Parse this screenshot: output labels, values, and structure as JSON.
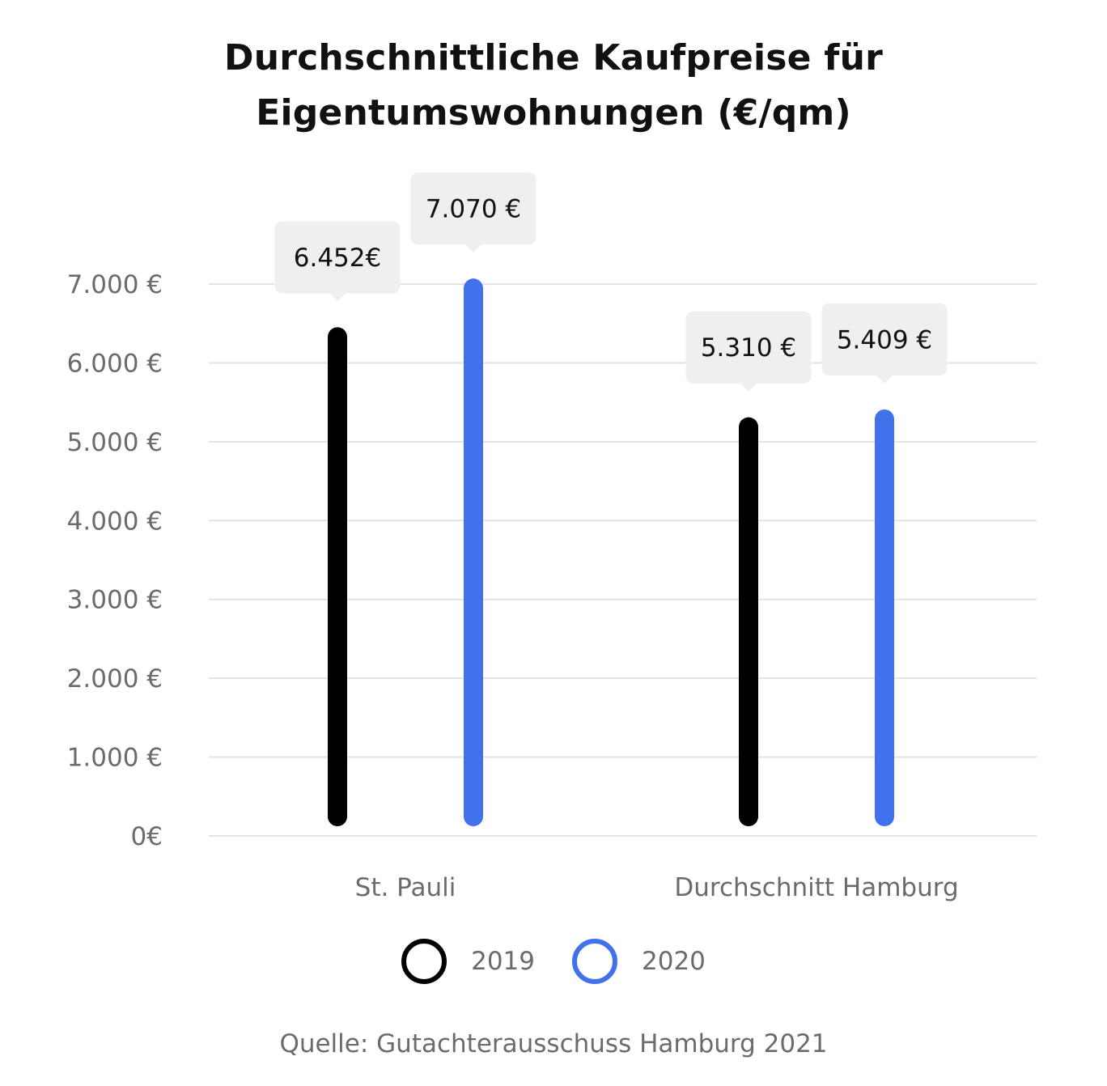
{
  "title_lines": [
    "Durchschnittliche Kaufpreise für",
    "Eigentumswohnungen (€/qm)"
  ],
  "source": "Quelle: Gutachterausschuss Hamburg 2021",
  "chart_data": {
    "type": "bar",
    "title": "Durchschnittliche Kaufpreise für Eigentumswohnungen (€/qm)",
    "categories": [
      "St. Pauli",
      "Durchschnitt Hamburg"
    ],
    "series": [
      {
        "name": "2019",
        "color": "#000000",
        "values": [
          6452,
          5310
        ],
        "labels": [
          "6.452€",
          "5.310 €"
        ]
      },
      {
        "name": "2020",
        "color": "#4272EB",
        "values": [
          7070,
          5409
        ],
        "labels": [
          "7.070 €",
          "5.409 €"
        ]
      }
    ],
    "ylim": [
      0,
      7000
    ],
    "yticks": [
      0,
      1000,
      2000,
      3000,
      4000,
      5000,
      6000,
      7000
    ],
    "ytick_labels": [
      "0€",
      "1.000 €",
      "2.000 €",
      "3.000 €",
      "4.000 €",
      "5.000 €",
      "6.000 €",
      "7.000 €"
    ],
    "grid": true,
    "legend_position": "bottom"
  },
  "colors": {
    "grid": "#e3e3e3",
    "tick_text": "#6b6b6b",
    "callout_bg": "#efefef"
  }
}
